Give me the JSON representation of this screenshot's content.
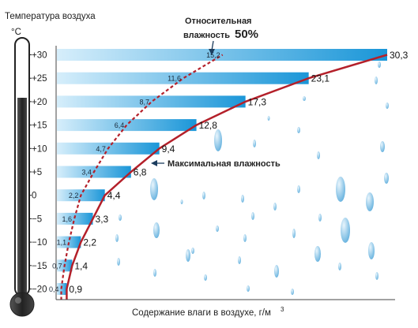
{
  "chart_data": {
    "type": "bar",
    "title": "Температура воздуха",
    "unit": "°C",
    "xlabel": "Содержание влаги в воздухе, г/м",
    "xlabel_sup": "3",
    "categories": [
      "+30",
      "+25",
      "+20",
      "+15",
      "+10",
      "+5",
      "0",
      "−5",
      "−10",
      "−15",
      "−20"
    ],
    "series": [
      {
        "name": "Максимальная влажность",
        "values": [
          30.3,
          23.1,
          17.3,
          12.8,
          9.4,
          6.8,
          4.4,
          3.3,
          2.2,
          1.4,
          0.9
        ],
        "labels": [
          "30,3",
          "23,1",
          "17,3",
          "12,8",
          "9,4",
          "6,8",
          "4,4",
          "3,3",
          "2,2",
          "1,4",
          "0,9"
        ]
      },
      {
        "name_line1": "Относительная",
        "name_line2": "влажность",
        "name_pct": "50%",
        "values": [
          15.2,
          11.6,
          8.7,
          6.4,
          4.7,
          3.4,
          2.2,
          1.6,
          1.1,
          0.7,
          0.4
        ],
        "labels": [
          "15,2",
          "11,6",
          "8,7",
          "6,4",
          "4,7",
          "3,4",
          "2,2",
          "1,6",
          "1,1",
          "0,7",
          "0,4"
        ]
      }
    ],
    "xlim": [
      0,
      30.3
    ],
    "colors": {
      "bar": "#1a96d8",
      "bar_light": "#cfeafa",
      "curve": "#b4202a",
      "drops": "#6fb7e3"
    }
  }
}
